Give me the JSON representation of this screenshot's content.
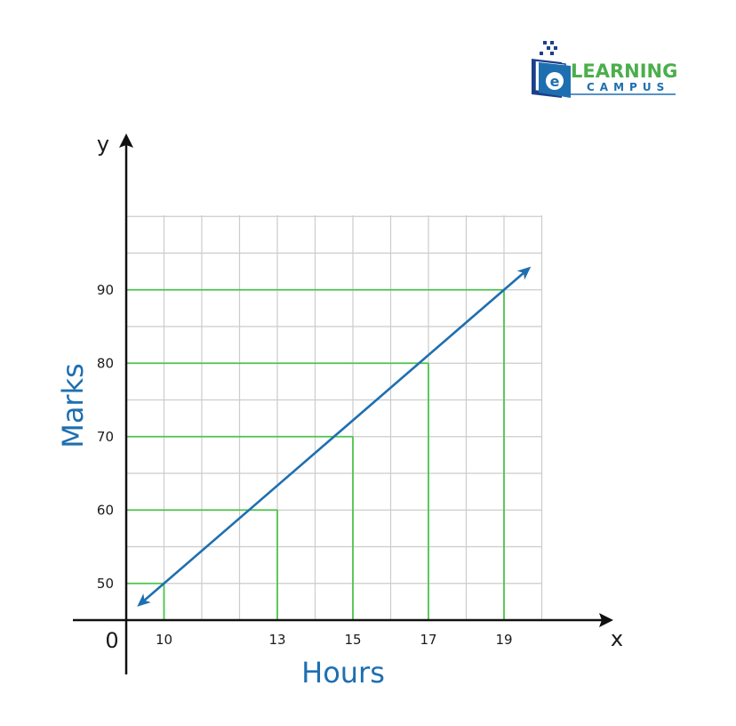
{
  "logo": {
    "big_text": "LEARNING",
    "small_text": "CAMPUS",
    "letter": "e",
    "colors": {
      "green": "#4cae4c",
      "blue": "#1e6fb0",
      "navy": "#1c3f8c"
    },
    "icon": "open-book-logo-icon"
  },
  "chart_data": {
    "type": "line",
    "title": "",
    "xlabel": "Hours",
    "ylabel": "Marks",
    "x_axis_letter": "x",
    "y_axis_letter": "y",
    "origin_label": "0",
    "x_ticks": [
      10,
      13,
      15,
      17,
      19
    ],
    "y_ticks": [
      50,
      60,
      70,
      80,
      90
    ],
    "series": [
      {
        "x": [
          10,
          13,
          15,
          17,
          19
        ],
        "y": [
          50,
          60,
          70,
          80,
          90
        ]
      }
    ],
    "grid": true,
    "colors": {
      "line": "#1e6fb0",
      "guides": "#4cc44c",
      "grid": "#cccccc",
      "axes": "#111111",
      "title": "#1e6fb0"
    }
  }
}
